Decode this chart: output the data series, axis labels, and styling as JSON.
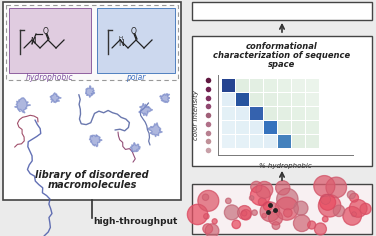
{
  "bg_color": "#ebebeb",
  "left_panel_bg": "#ffffff",
  "hydrophobic_box_color": "#e0cce0",
  "polar_box_color": "#ccd8ee",
  "dashed_border_color": "#999999",
  "hydrophobic_label_color": "#8050a0",
  "polar_label_color": "#4070c0",
  "title_text": "conformational\ncharacterization of sequence\nspace",
  "left_label1": "library of disordered",
  "left_label2": "macromolecules",
  "bottom_label": "high-throughput",
  "xlabel": "% hydrophobic",
  "ylabel": "color intensity",
  "chain_color1": "#5060a0",
  "chain_color2": "#a03050",
  "blob_color": "#6878c8",
  "dot_colors": [
    "#c8a0a8",
    "#c09098",
    "#b88090",
    "#b07088",
    "#a06078",
    "#904870",
    "#803060",
    "#702050",
    "#601840"
  ],
  "blue_diag": [
    "#1a3a8a",
    "#1a4a9a",
    "#2a5aaa",
    "#2a6aba",
    "#3a7aba",
    "#5090c8",
    "#70a8d4"
  ],
  "green_off": "#c0dcc0",
  "blue_off": "#b0d4e8",
  "top_right_box_bg": "#ffffff",
  "mid_right_box_bg": "#ffffff",
  "bot_right_box_bg": "#f8f2f4"
}
